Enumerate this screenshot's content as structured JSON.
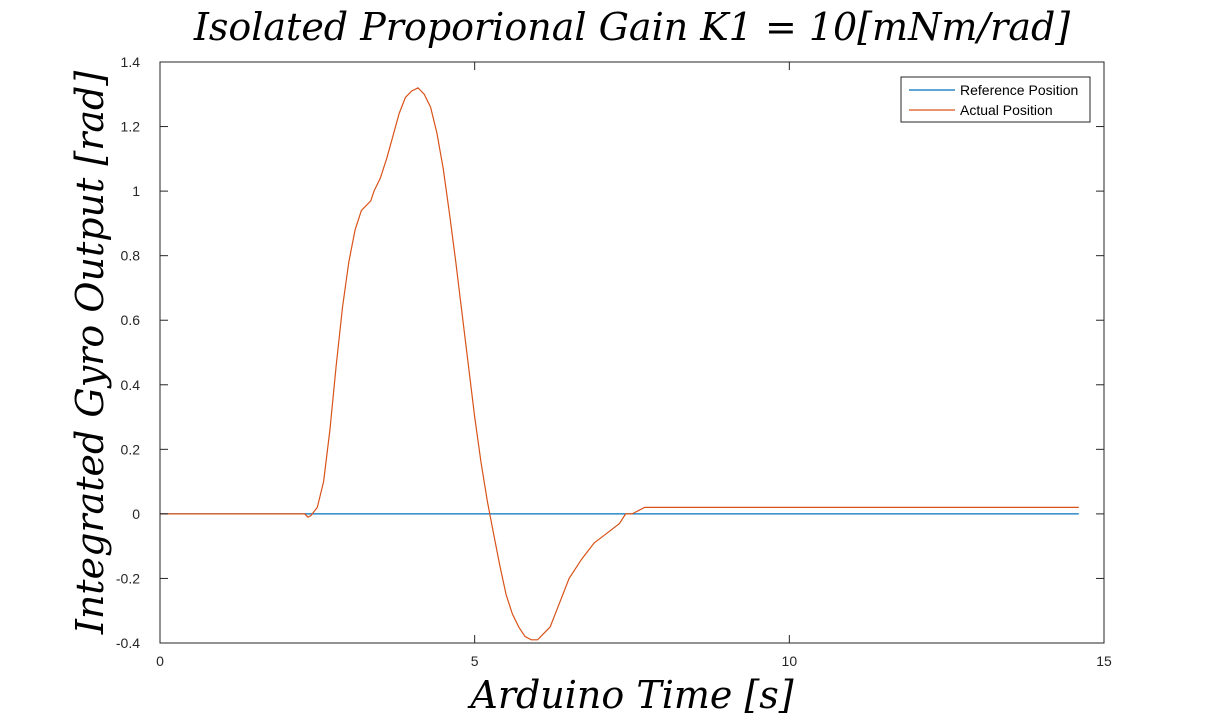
{
  "chart_data": {
    "type": "line",
    "title": "Isolated Proporional Gain K1 = 10[mNm/rad]",
    "xlabel": "Arduino Time [s]",
    "ylabel": "Integrated Gyro Output [rad]",
    "xlim": [
      0,
      15
    ],
    "ylim": [
      -0.4,
      1.4
    ],
    "xticks": [
      "0",
      "5",
      "10",
      "15"
    ],
    "yticks": [
      "-0.4",
      "-0.2",
      "0",
      "0.2",
      "0.4",
      "0.6",
      "0.8",
      "1",
      "1.2",
      "1.4"
    ],
    "grid": false,
    "legend_position": "top-right",
    "series": [
      {
        "name": "Reference Position",
        "color": "#0072BD",
        "x": [
          0,
          14.6
        ],
        "y": [
          0,
          0
        ]
      },
      {
        "name": "Actual Position",
        "color": "#D95319",
        "x": [
          0,
          2.3,
          2.35,
          2.4,
          2.5,
          2.6,
          2.7,
          2.8,
          2.9,
          3.0,
          3.1,
          3.2,
          3.3,
          3.35,
          3.4,
          3.5,
          3.6,
          3.7,
          3.8,
          3.9,
          4.0,
          4.1,
          4.2,
          4.3,
          4.4,
          4.5,
          4.6,
          4.7,
          4.8,
          4.9,
          5.0,
          5.1,
          5.2,
          5.3,
          5.4,
          5.5,
          5.6,
          5.7,
          5.8,
          5.9,
          6.0,
          6.1,
          6.2,
          6.3,
          6.4,
          6.5,
          6.7,
          6.9,
          7.1,
          7.3,
          7.4,
          7.5,
          7.6,
          7.7,
          7.8,
          14.6
        ],
        "y": [
          0,
          0,
          -0.01,
          -0.005,
          0.02,
          0.1,
          0.26,
          0.46,
          0.64,
          0.78,
          0.88,
          0.94,
          0.96,
          0.97,
          1.0,
          1.04,
          1.1,
          1.17,
          1.24,
          1.29,
          1.31,
          1.32,
          1.3,
          1.26,
          1.18,
          1.07,
          0.93,
          0.78,
          0.62,
          0.46,
          0.3,
          0.16,
          0.04,
          -0.06,
          -0.16,
          -0.25,
          -0.31,
          -0.35,
          -0.38,
          -0.39,
          -0.39,
          -0.37,
          -0.35,
          -0.3,
          -0.25,
          -0.2,
          -0.14,
          -0.09,
          -0.06,
          -0.03,
          0.0,
          0.0,
          0.01,
          0.02,
          0.02,
          0.02
        ]
      }
    ]
  }
}
